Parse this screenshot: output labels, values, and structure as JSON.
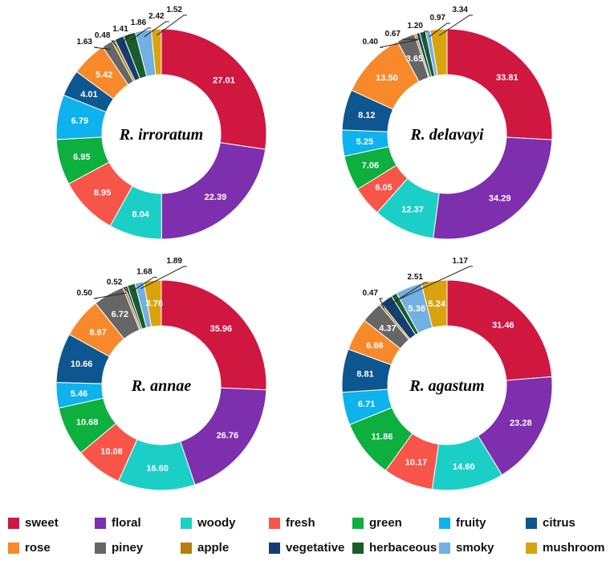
{
  "legend": [
    {
      "label": "sweet",
      "color": "#D0173F"
    },
    {
      "label": "floral",
      "color": "#7D2FAE"
    },
    {
      "label": "woody",
      "color": "#1CCFC6"
    },
    {
      "label": "fresh",
      "color": "#F7554A"
    },
    {
      "label": "green",
      "color": "#0DAF3E"
    },
    {
      "label": "fruity",
      "color": "#0EB2EC"
    },
    {
      "label": "citrus",
      "color": "#0D5690"
    },
    {
      "label": "rose",
      "color": "#F7892B"
    },
    {
      "label": "piney",
      "color": "#666666"
    },
    {
      "label": "apple",
      "color": "#B37E0E"
    },
    {
      "label": "vegetative",
      "color": "#143E6E"
    },
    {
      "label": "herbaceous",
      "color": "#1A5C2A"
    },
    {
      "label": "smoky",
      "color": "#72B0E2"
    },
    {
      "label": "mushroom",
      "color": "#D9A310"
    }
  ],
  "chart_data": [
    {
      "type": "pie",
      "title": "R. irroratum",
      "categories": [
        "sweet",
        "floral",
        "woody",
        "fresh",
        "green",
        "fruity",
        "citrus",
        "rose",
        "piney",
        "apple",
        "vegetative",
        "herbaceous",
        "smoky",
        "mushroom"
      ],
      "values": [
        27.01,
        22.39,
        8.04,
        8.95,
        6.95,
        6.79,
        4.01,
        5.42,
        1.63,
        0.48,
        1.41,
        1.86,
        2.42,
        1.52
      ],
      "labels": [
        "27.01",
        "22.39",
        "8.04",
        "8.95",
        "6.95",
        "6.79",
        "4.01",
        "5.42",
        "1.63",
        "0.48",
        "1.41",
        "1.86",
        "2.42",
        "1.52"
      ]
    },
    {
      "type": "pie",
      "title": "R. delavayi",
      "categories": [
        "sweet",
        "floral",
        "woody",
        "fresh",
        "green",
        "fruity",
        "citrus",
        "rose",
        "piney",
        "apple",
        "vegetative",
        "herbaceous",
        "smoky",
        "mushroom"
      ],
      "values": [
        33.81,
        34.29,
        12.37,
        6.05,
        7.06,
        5.25,
        8.12,
        13.5,
        3.65,
        0.4,
        0.67,
        1.2,
        0.97,
        3.34
      ],
      "labels": [
        "33.81",
        "34.29",
        "12.37",
        "6.05",
        "7.06",
        "5.25",
        "8.12",
        "13.50",
        "3.65",
        "0.40",
        "0.67",
        "1.20",
        "0.97",
        "3.34"
      ]
    },
    {
      "type": "pie",
      "title": "R. annae",
      "categories": [
        "sweet",
        "floral",
        "woody",
        "fresh",
        "green",
        "fruity",
        "citrus",
        "rose",
        "piney",
        "apple",
        "vegetative",
        "herbaceous",
        "smoky",
        "mushroom"
      ],
      "values": [
        35.96,
        26.76,
        16.6,
        10.08,
        10.68,
        5.46,
        10.66,
        8.67,
        6.72,
        0.5,
        0.52,
        1.68,
        1.89,
        3.76
      ],
      "labels": [
        "35.96",
        "26.76",
        "16.60",
        "10.08",
        "10.68",
        "5.46",
        "10.66",
        "8.67",
        "6.72",
        "0.50",
        "0.52",
        "1.68",
        "1.89",
        "3.76"
      ]
    },
    {
      "type": "pie",
      "title": "R. agastum",
      "categories": [
        "sweet",
        "floral",
        "woody",
        "fresh",
        "green",
        "fruity",
        "citrus",
        "rose",
        "piney",
        "apple",
        "vegetative",
        "herbaceous",
        "smoky",
        "mushroom"
      ],
      "values": [
        31.46,
        23.28,
        14.6,
        10.17,
        11.86,
        6.71,
        8.81,
        6.66,
        4.37,
        0.47,
        2.51,
        1.17,
        5.36,
        5.24
      ],
      "labels": [
        "31.46",
        "23.28",
        "14.60",
        "10.17",
        "11.86",
        "6.71",
        "8.81",
        "6.66",
        "4.37",
        "0.47",
        "2.51",
        "1.17",
        "5.36",
        "5.24"
      ]
    }
  ]
}
